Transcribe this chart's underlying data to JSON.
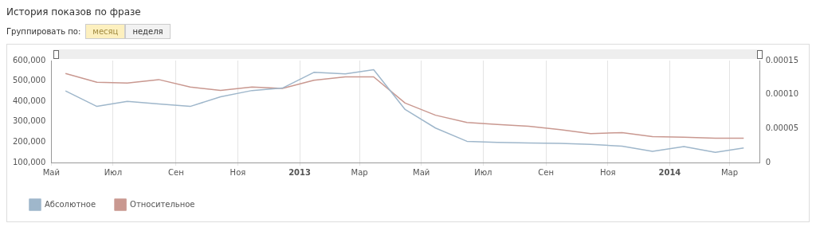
{
  "chart_data": {
    "type": "line",
    "title": "История показов по фразе",
    "annotations": [
      "Группировать по:",
      "месяц",
      "неделя"
    ],
    "x": [
      "2012-05-15",
      "2012-06-15",
      "2012-07-15",
      "2012-08-15",
      "2012-09-15",
      "2012-10-15",
      "2012-11-15",
      "2012-12-15",
      "2013-01-15",
      "2013-02-15",
      "2013-03-15",
      "2013-04-15",
      "2013-05-15",
      "2013-06-15",
      "2013-07-15",
      "2013-08-15",
      "2013-09-15",
      "2013-10-15",
      "2013-11-15",
      "2013-12-15",
      "2014-01-15",
      "2014-02-15",
      "2014-03-15"
    ],
    "series": [
      {
        "name": "Абсолютное",
        "color": "#9fb7cb",
        "values": [
          451000,
          375000,
          400000,
          387000,
          375000,
          422000,
          453000,
          465000,
          542000,
          535000,
          555000,
          360000,
          269000,
          204000,
          199000,
          196000,
          194000,
          189000,
          180000,
          155000,
          178000,
          150000,
          171000
        ]
      },
      {
        "name": "Относительное",
        "color": "#c99890",
        "axis": "y2",
        "values": [
          0.000131,
          0.000118,
          0.000117,
          0.000122,
          0.000111,
          0.000106,
          0.000111,
          0.000109,
          0.000121,
          0.000126,
          0.000126,
          8.75e-05,
          6.96e-05,
          5.89e-05,
          5.6e-05,
          5.32e-05,
          4.82e-05,
          4.25e-05,
          4.39e-05,
          3.82e-05,
          3.72e-05,
          3.57e-05,
          3.57e-05
        ]
      }
    ],
    "xlim": [
      "2012-05-01",
      "2014-03-31"
    ],
    "xticks": [
      {
        "value": "2012-05-01",
        "label": "Май"
      },
      {
        "value": "2012-07-01",
        "label": "Июл"
      },
      {
        "value": "2012-09-01",
        "label": "Сен"
      },
      {
        "value": "2012-11-01",
        "label": "Ноя"
      },
      {
        "value": "2013-01-01",
        "label": "2013"
      },
      {
        "value": "2013-03-01",
        "label": "Мар"
      },
      {
        "value": "2013-05-01",
        "label": "Май"
      },
      {
        "value": "2013-07-01",
        "label": "Июл"
      },
      {
        "value": "2013-09-01",
        "label": "Сен"
      },
      {
        "value": "2013-11-01",
        "label": "Ноя"
      },
      {
        "value": "2014-01-01",
        "label": "2014"
      },
      {
        "value": "2014-03-01",
        "label": "Мар"
      }
    ],
    "ylim": [
      100000,
      600000
    ],
    "yticks": [
      {
        "value": 100000,
        "label": "100,000"
      },
      {
        "value": 200000,
        "label": "200,000"
      },
      {
        "value": 300000,
        "label": "300,000"
      },
      {
        "value": 400000,
        "label": "400,000"
      },
      {
        "value": 500000,
        "label": "500,000"
      },
      {
        "value": 600000,
        "label": "600,000"
      }
    ],
    "y2lim": [
      0,
      0.00015
    ],
    "y2ticks": [
      {
        "value": 0,
        "label": "0"
      },
      {
        "value": 5e-05,
        "label": "0.00005"
      },
      {
        "value": 0.0001,
        "label": "0.00010"
      },
      {
        "value": 0.00015,
        "label": "0.00015"
      }
    ],
    "grid": "x",
    "legend": "bottom left",
    "marker": "none",
    "line_style": "solid"
  }
}
